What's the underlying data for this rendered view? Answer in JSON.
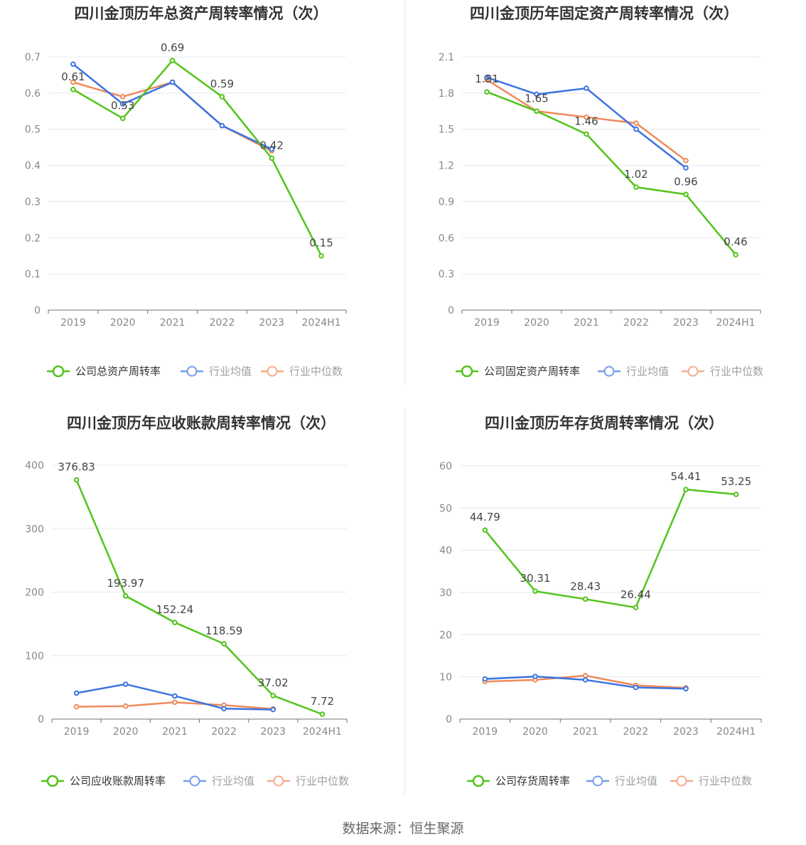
{
  "footer": {
    "source_label": "数据来源：恒生聚源"
  },
  "colors": {
    "company": "#52c41a",
    "avg": "#3b74e0",
    "median": "#ef8a5b"
  },
  "chart_data": [
    {
      "type": "line",
      "title": "四川金顶历年总资产周转率情况（次）",
      "categories": [
        "2019",
        "2020",
        "2021",
        "2022",
        "2023",
        "2024H1"
      ],
      "y_ticks": [
        "0",
        "0.1",
        "0.2",
        "0.3",
        "0.4",
        "0.5",
        "0.6",
        "0.7"
      ],
      "ylim": [
        0,
        0.7
      ],
      "series": [
        {
          "name": "公司总资产周转率",
          "values": [
            0.61,
            0.53,
            0.69,
            0.59,
            0.42,
            0.15
          ],
          "labels": [
            "0.61",
            "0.53",
            "0.69",
            "0.59",
            "0.42",
            "0.15"
          ]
        },
        {
          "name": "行业均值",
          "values": [
            0.68,
            0.57,
            0.63,
            0.51,
            0.445,
            null
          ]
        },
        {
          "name": "行业中位数",
          "values": [
            0.63,
            0.59,
            0.63,
            0.51,
            0.44,
            null
          ]
        }
      ]
    },
    {
      "type": "line",
      "title": "四川金顶历年固定资产周转率情况（次）",
      "categories": [
        "2019",
        "2020",
        "2021",
        "2022",
        "2023",
        "2024H1"
      ],
      "y_ticks": [
        "0",
        "0.3",
        "0.6",
        "0.9",
        "1.2",
        "1.5",
        "1.8",
        "2.1"
      ],
      "ylim": [
        0,
        2.1
      ],
      "series": [
        {
          "name": "公司固定资产周转率",
          "values": [
            1.81,
            1.65,
            1.46,
            1.02,
            0.96,
            0.46
          ],
          "labels": [
            "1.81",
            "1.65",
            "1.46",
            "1.02",
            "0.96",
            "0.46"
          ]
        },
        {
          "name": "行业均值",
          "values": [
            1.93,
            1.79,
            1.84,
            1.5,
            1.18,
            null
          ]
        },
        {
          "name": "行业中位数",
          "values": [
            1.91,
            1.65,
            1.6,
            1.55,
            1.24,
            null
          ]
        }
      ]
    },
    {
      "type": "line",
      "title": "四川金顶历年应收账款周转率情况（次）",
      "categories": [
        "2019",
        "2020",
        "2021",
        "2022",
        "2023",
        "2024H1"
      ],
      "y_ticks": [
        "0",
        "100",
        "200",
        "300",
        "400"
      ],
      "ylim": [
        0,
        400
      ],
      "series": [
        {
          "name": "公司应收账款周转率",
          "values": [
            376.83,
            193.97,
            152.24,
            118.59,
            37.02,
            7.72
          ],
          "labels": [
            "376.83",
            "193.97",
            "152.24",
            "118.59",
            "37.02",
            "7.72"
          ]
        },
        {
          "name": "行业均值",
          "values": [
            41,
            55,
            36.5,
            16.5,
            15,
            null
          ]
        },
        {
          "name": "行业中位数",
          "values": [
            19.5,
            20.5,
            26.5,
            22,
            16,
            null
          ]
        }
      ]
    },
    {
      "type": "line",
      "title": "四川金顶历年存货周转率情况（次）",
      "categories": [
        "2019",
        "2020",
        "2021",
        "2022",
        "2023",
        "2024H1"
      ],
      "y_ticks": [
        "0",
        "10",
        "20",
        "30",
        "40",
        "50",
        "60"
      ],
      "ylim": [
        0,
        60
      ],
      "series": [
        {
          "name": "公司存货周转率",
          "values": [
            44.79,
            30.31,
            28.43,
            26.44,
            54.41,
            53.25
          ],
          "labels": [
            "44.79",
            "30.31",
            "28.43",
            "26.44",
            "54.41",
            "53.25"
          ]
        },
        {
          "name": "行业均值",
          "values": [
            9.5,
            10.1,
            9.3,
            7.5,
            7.2,
            null
          ]
        },
        {
          "name": "行业中位数",
          "values": [
            8.9,
            9.3,
            10.3,
            8.0,
            7.4,
            null
          ]
        }
      ]
    }
  ]
}
